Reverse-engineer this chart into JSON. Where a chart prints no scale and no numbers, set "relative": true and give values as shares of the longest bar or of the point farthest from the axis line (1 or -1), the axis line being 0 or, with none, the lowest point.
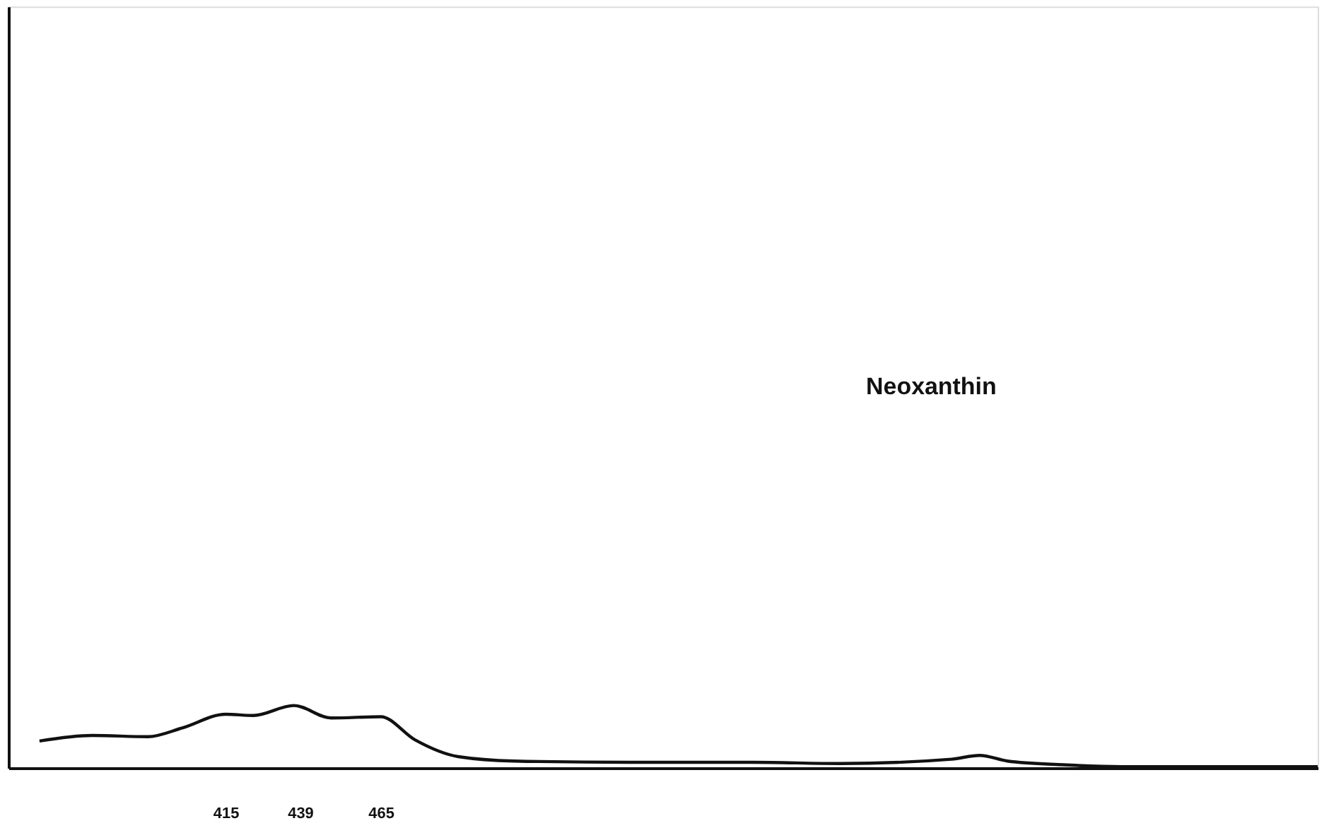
{
  "chart_data": {
    "type": "line",
    "relative": true,
    "x": [
      355,
      372,
      390,
      401,
      415,
      424,
      437,
      449,
      465,
      476,
      490,
      508,
      545,
      585,
      613,
      649,
      658,
      667,
      685,
      704,
      767
    ],
    "series": [
      {
        "color": "#111111",
        "values": [
          0.43,
          0.52,
          0.5,
          0.64,
          0.86,
          0.84,
          1,
          0.8,
          0.82,
          0.45,
          0.18,
          0.11,
          0.09,
          0.09,
          0.07,
          0.14,
          0.2,
          0.11,
          0.05,
          0.02,
          0.02
        ]
      }
    ],
    "xlim": [
      345,
      767
    ],
    "xticks": [
      415,
      439,
      465
    ],
    "annotations": [
      "Neoxanthin"
    ],
    "grid": false,
    "legend": false,
    "marker": "none",
    "line_style": "solid"
  }
}
